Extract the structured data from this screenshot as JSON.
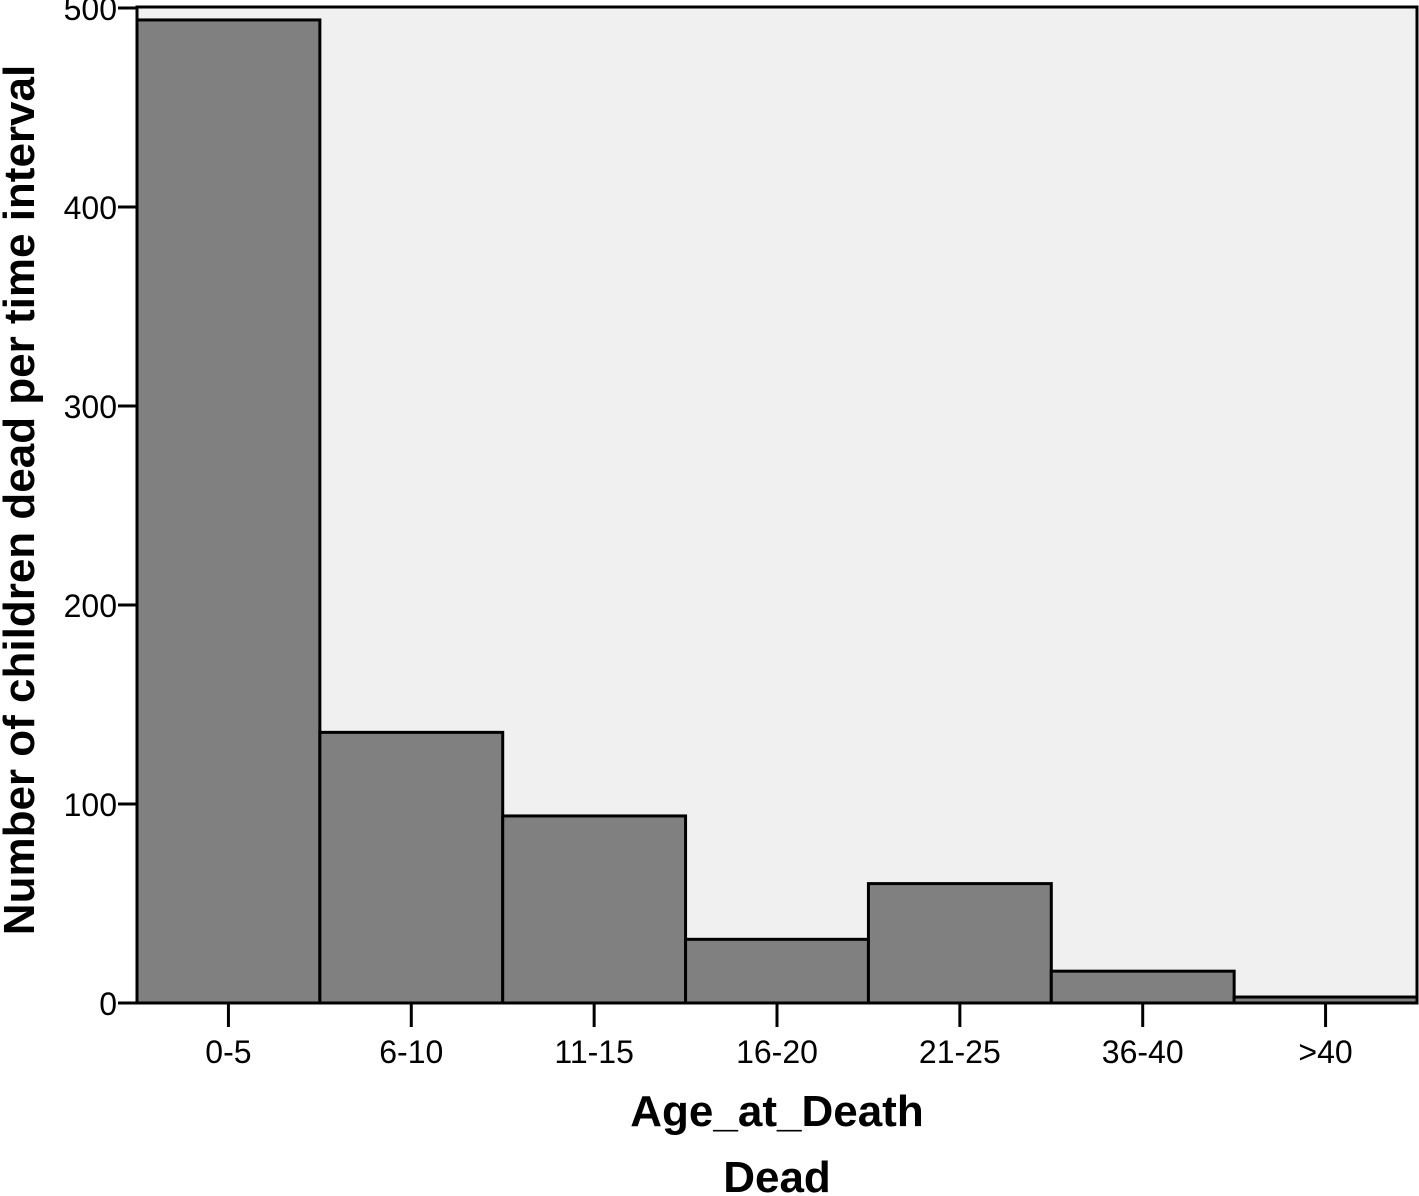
{
  "chart_data": {
    "type": "bar",
    "categories": [
      "0-5",
      "6-10",
      "11-15",
      "16-20",
      "21-25",
      "36-40",
      ">40"
    ],
    "values": [
      494,
      136,
      94,
      32,
      60,
      16,
      3
    ],
    "ylabel": "Number of children dead per time interval",
    "xlabel": "Age_at_Death",
    "subtitle": "Dead",
    "ylim": [
      0,
      500
    ],
    "yticks": [
      0,
      100,
      200,
      300,
      400,
      500
    ],
    "grid": false,
    "colors": {
      "plot_bg": "#f0f0f0",
      "bar_fill": "#808080",
      "stroke": "#000000"
    }
  }
}
